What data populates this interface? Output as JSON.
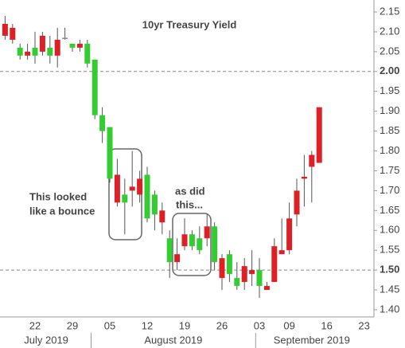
{
  "chart_data": {
    "type": "candlestick",
    "title": "10yr Treasury Yield",
    "categories": [
      null,
      null,
      null,
      null,
      "22",
      null,
      null,
      null,
      null,
      "29",
      null,
      null,
      null,
      null,
      "05",
      null,
      null,
      null,
      null,
      "12",
      null,
      null,
      null,
      null,
      "19",
      null,
      null,
      null,
      null,
      "26",
      null,
      null,
      null,
      null,
      "03",
      null,
      null,
      null,
      "09",
      null,
      null,
      null,
      null,
      "16",
      null,
      null,
      null,
      null,
      "23"
    ],
    "months": [
      {
        "label": "July 2019",
        "from": 0,
        "to": 11
      },
      {
        "label": "August 2019",
        "from": 12,
        "to": 33
      },
      {
        "label": "September 2019",
        "from": 34,
        "to": 48
      }
    ],
    "open": [
      2.09,
      2.08,
      2.06,
      2.04,
      2.06,
      2.05,
      2.06,
      2.04,
      2.085,
      2.07,
      2.06,
      2.07,
      2.03,
      1.89,
      1.86,
      1.67,
      1.69,
      1.7,
      1.69,
      1.74,
      1.69,
      1.62,
      1.58,
      1.52,
      1.56,
      1.59,
      1.58,
      1.58,
      1.61,
      1.48,
      1.54,
      1.48,
      1.47,
      1.49,
      1.5,
      1.45,
      1.47,
      1.54,
      1.55,
      1.64,
      1.73,
      1.76,
      1.77,
      null,
      null,
      null,
      null,
      null,
      null
    ],
    "high": [
      2.14,
      2.12,
      2.07,
      2.07,
      2.1,
      2.1,
      2.09,
      2.11,
      2.11,
      2.07,
      2.08,
      2.08,
      2.03,
      1.91,
      1.86,
      1.78,
      1.73,
      1.8,
      1.75,
      1.76,
      1.7,
      1.67,
      1.6,
      1.58,
      1.63,
      1.6,
      1.61,
      1.64,
      1.62,
      1.54,
      1.55,
      1.52,
      1.53,
      1.55,
      1.53,
      1.47,
      1.58,
      1.63,
      1.67,
      1.73,
      1.79,
      1.8,
      1.91,
      null,
      null,
      null,
      null,
      null,
      null
    ],
    "low": [
      2.08,
      2.07,
      2.03,
      2.03,
      2.02,
      2.04,
      2.02,
      2.01,
      2.08,
      2.05,
      2.05,
      2.01,
      1.88,
      1.82,
      1.72,
      1.66,
      1.59,
      1.66,
      1.67,
      1.62,
      1.6,
      1.59,
      1.48,
      1.5,
      1.55,
      1.55,
      1.54,
      1.56,
      1.5,
      1.45,
      1.47,
      1.45,
      1.45,
      1.46,
      1.43,
      1.45,
      1.47,
      1.54,
      1.54,
      1.61,
      1.66,
      1.67,
      1.77,
      null,
      null,
      null,
      null,
      null,
      null
    ],
    "close": [
      2.12,
      2.11,
      2.04,
      2.05,
      2.04,
      2.09,
      2.04,
      2.08,
      2.085,
      2.06,
      2.07,
      2.02,
      1.89,
      1.85,
      1.73,
      1.74,
      1.67,
      1.71,
      1.73,
      1.63,
      1.64,
      1.65,
      1.52,
      1.54,
      1.59,
      1.56,
      1.55,
      1.61,
      1.52,
      1.53,
      1.49,
      1.46,
      1.51,
      1.5,
      1.46,
      1.46,
      1.56,
      1.55,
      1.63,
      1.7,
      1.735,
      1.79,
      1.91,
      null,
      null,
      null,
      null,
      null,
      null
    ],
    "up_color": "#dd1f26",
    "down_color": "#33cc33",
    "flat_color": "#888888",
    "ylim": [
      1.38,
      2.17
    ],
    "yticks": [
      {
        "value": 1.4,
        "label": "1.40"
      },
      {
        "value": 1.45,
        "label": "1.45"
      },
      {
        "value": 1.5,
        "label": "1.50"
      },
      {
        "value": 1.55,
        "label": "1.55"
      },
      {
        "value": 1.6,
        "label": "1.60"
      },
      {
        "value": 1.65,
        "label": "1.65"
      },
      {
        "value": 1.7,
        "label": "1.70"
      },
      {
        "value": 1.75,
        "label": "1.75"
      },
      {
        "value": 1.8,
        "label": "1.80"
      },
      {
        "value": 1.85,
        "label": "1.85"
      },
      {
        "value": 1.9,
        "label": "1.90"
      },
      {
        "value": 1.95,
        "label": "1.95"
      },
      {
        "value": 2.0,
        "label": "2.00"
      },
      {
        "value": 2.05,
        "label": "2.05"
      },
      {
        "value": 2.1,
        "label": "2.10"
      },
      {
        "value": 2.15,
        "label": "2.15"
      }
    ],
    "reference_lines": [
      2.0,
      1.5
    ],
    "annotations": [
      "This looked",
      "like a bounce",
      "as did",
      "this..."
    ]
  }
}
